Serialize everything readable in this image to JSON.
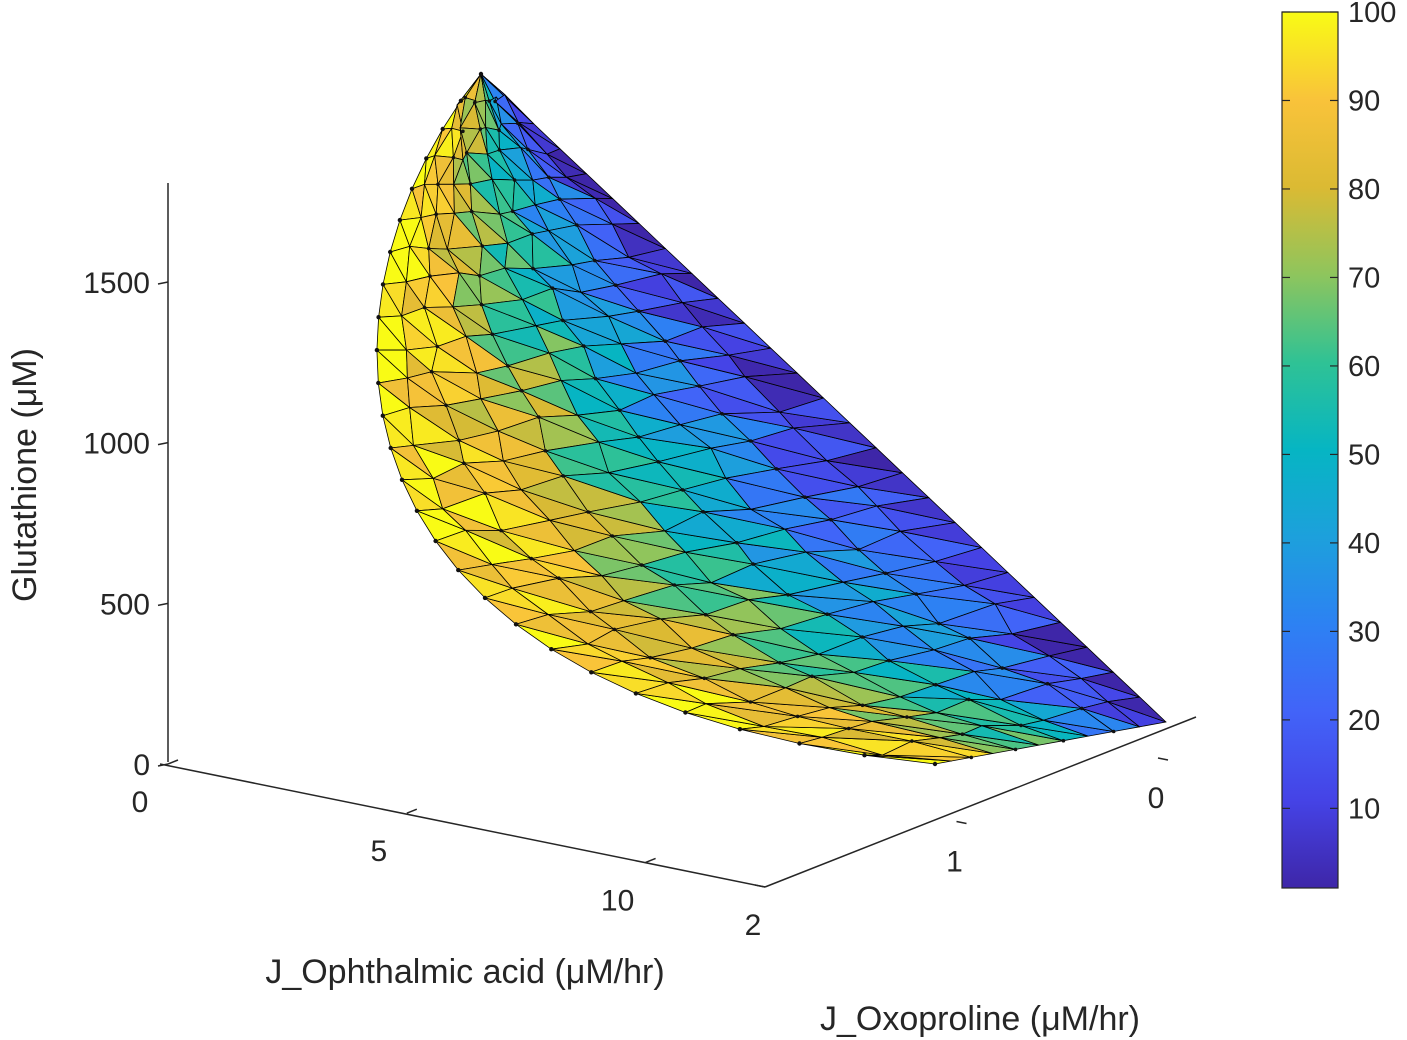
{
  "chart_data": {
    "type": "surface3d",
    "x_axis": {
      "label": "J_Ophthalmic acid (μM/hr)",
      "ticks": [
        0,
        5,
        10
      ],
      "range": [
        0,
        13
      ]
    },
    "y_axis": {
      "label": "J_Oxoproline (μM/hr)",
      "ticks": [
        0,
        1,
        2
      ],
      "range": [
        -0.4,
        2.2
      ]
    },
    "z_axis": {
      "label": "Glutathione (μM)",
      "ticks": [
        0,
        500,
        1000,
        1500
      ],
      "range": [
        0,
        1800
      ]
    },
    "colorbar": {
      "colormap": "parula",
      "ticks": [
        10,
        20,
        30,
        40,
        50,
        60,
        70,
        80,
        90,
        100
      ],
      "range": [
        1,
        100
      ]
    },
    "surface_outline": {
      "apex": {
        "x": 0,
        "y": 0,
        "z": 1700
      },
      "right_corner": {
        "x": 0,
        "y": 0,
        "z": 0
      },
      "bottom_point": {
        "x": 12,
        "y": 1.6,
        "z": 0
      }
    },
    "grid": false,
    "box": false
  }
}
